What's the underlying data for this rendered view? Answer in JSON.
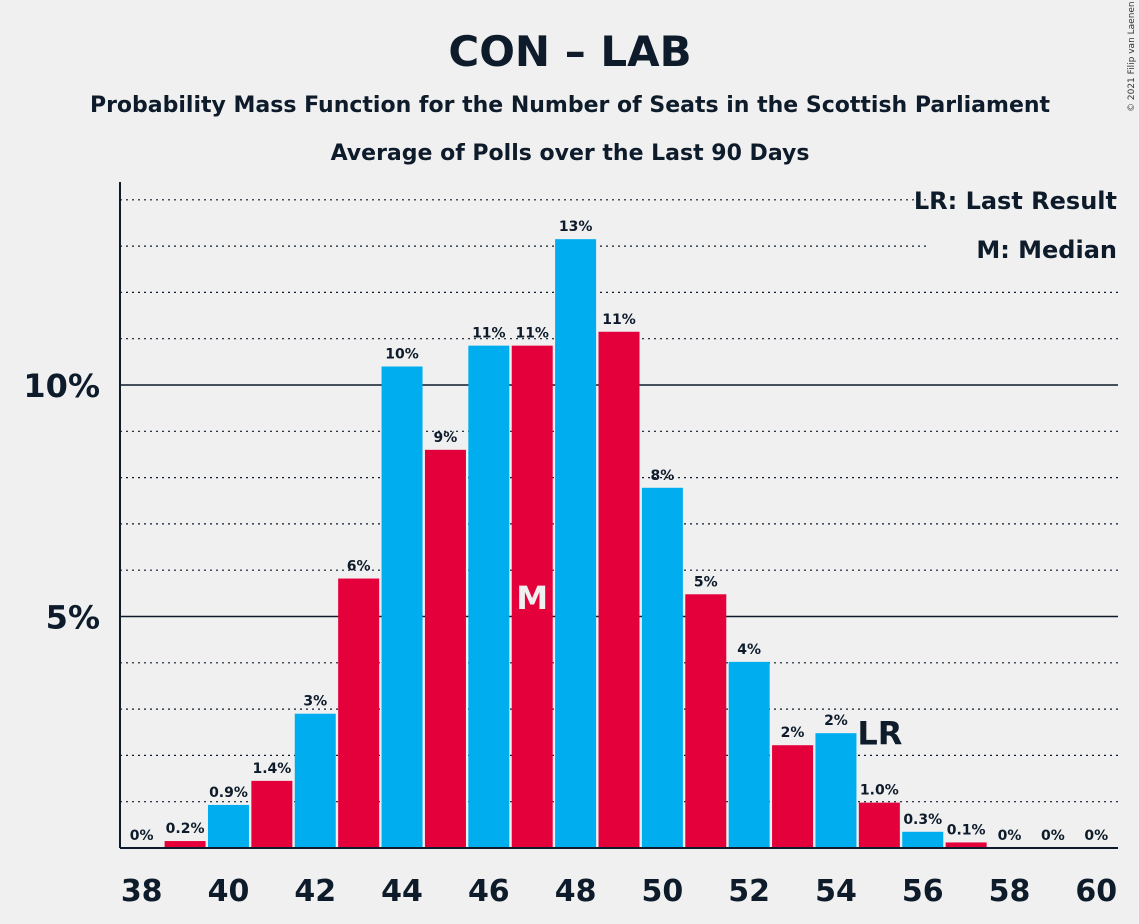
{
  "chart_data": {
    "type": "bar",
    "title": "CON – LAB",
    "subtitle": "Probability Mass Function for the Number of Seats in the Scottish Parliament",
    "subtitle2": "Average of Polls over the Last 90 Days",
    "copyright": "© 2021 Filip van Laenen",
    "legend": [
      "LR: Last Result",
      "M: Median"
    ],
    "legend_position": "top-right",
    "x_ticks": [
      "38",
      "40",
      "42",
      "44",
      "46",
      "48",
      "50",
      "52",
      "54",
      "56",
      "58",
      "60"
    ],
    "y_ticks": [
      {
        "value": 5,
        "label": "5%"
      },
      {
        "value": 10,
        "label": "10%"
      }
    ],
    "ylim": [
      0,
      14.3
    ],
    "xlim": [
      37.5,
      60.5
    ],
    "gridlines_minor_every": 1,
    "colors": {
      "odd": "#e4003b",
      "even": "#00aeef",
      "background": "#f0f0f0",
      "axis": "#0d1b2a"
    },
    "bars": [
      {
        "x": 38,
        "value": 0.0,
        "label": "0%"
      },
      {
        "x": 39,
        "value": 0.15,
        "label": "0.2%"
      },
      {
        "x": 40,
        "value": 0.93,
        "label": "0.9%"
      },
      {
        "x": 41,
        "value": 1.45,
        "label": "1.4%"
      },
      {
        "x": 42,
        "value": 2.9,
        "label": "3%"
      },
      {
        "x": 43,
        "value": 5.82,
        "label": "6%"
      },
      {
        "x": 44,
        "value": 10.4,
        "label": "10%"
      },
      {
        "x": 45,
        "value": 8.6,
        "label": "9%"
      },
      {
        "x": 46,
        "value": 10.85,
        "label": "11%"
      },
      {
        "x": 47,
        "value": 10.85,
        "label": "11%"
      },
      {
        "x": 48,
        "value": 13.15,
        "label": "13%"
      },
      {
        "x": 49,
        "value": 11.15,
        "label": "11%"
      },
      {
        "x": 50,
        "value": 7.78,
        "label": "8%"
      },
      {
        "x": 51,
        "value": 5.48,
        "label": "5%"
      },
      {
        "x": 52,
        "value": 4.02,
        "label": "4%"
      },
      {
        "x": 53,
        "value": 2.22,
        "label": "2%"
      },
      {
        "x": 54,
        "value": 2.48,
        "label": "2%"
      },
      {
        "x": 55,
        "value": 0.98,
        "label": "1.0%"
      },
      {
        "x": 56,
        "value": 0.35,
        "label": "0.3%"
      },
      {
        "x": 57,
        "value": 0.12,
        "label": "0.1%"
      },
      {
        "x": 58,
        "value": 0.0,
        "label": "0%"
      },
      {
        "x": 59,
        "value": 0.0,
        "label": "0%"
      },
      {
        "x": 60,
        "value": 0.0,
        "label": "0%"
      }
    ],
    "median_seat": 47,
    "median_marker": "M",
    "last_result_seat": 55,
    "last_result_marker": "LR"
  }
}
